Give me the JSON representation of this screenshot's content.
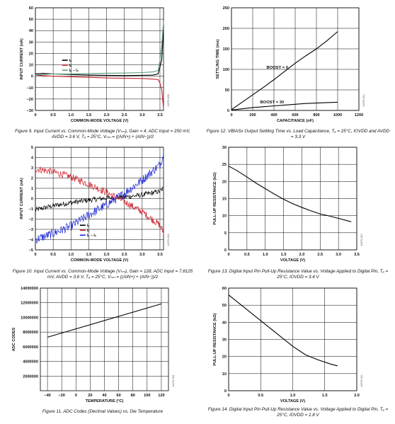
{
  "captions": {
    "fig9": "Figure 9. Input Current vs. Common-Mode Voltage (Vₕₘ), Gain = 4, ADC Input = 250 mV, AVDD = 3.6 V, Tₐ = 25°C, Vₕₘ = ((AIN+) + (AIN−))/2",
    "fig10": "Figure 10. Input Current vs. Common-Mode Voltage (Vₕₘ), Gain = 128, ADC Input = 7.8125 mV, AVDD = 3.6 V, Tₐ = 25°C, Vₕₘ = ((AIN+) + (AIN−))/2",
    "fig11": "Figure 11. ADC Codes (Decimal Values) vs. Die Temperature",
    "fig12": "Figure 12. VBIASx Output Settling Time vs. Load Capacitance, Tₐ = 25°C, IOVDD and AVDD = 3.3 V",
    "fig13": "Figure 13. Digital Input Pin Pull-Up Resistance Value vs. Voltage Applied to Digital Pin, Tₐ = 25°C, IOVDD = 3.4 V",
    "fig14": "Figure 14. Digital Input Pin Pull-Up Resistance Value vs. Voltage Applied to Digital Pin, Tₐ = 25°C, IOVDD = 1.8 V"
  },
  "chart_data": [
    {
      "id": "fig9",
      "type": "line",
      "xlabel": "COMMON-MODE VOLTAGE (V)",
      "ylabel": "INPUT CURRENT (nA)",
      "xlim": [
        0,
        3.6
      ],
      "ylim": [
        -30,
        60
      ],
      "xticks": [
        "0",
        "0.5",
        "1.0",
        "1.5",
        "2.0",
        "2.5",
        "3.0",
        "3.5"
      ],
      "yticks": [
        "60",
        "50",
        "40",
        "30",
        "20",
        "10",
        "0",
        "−10",
        "−20",
        "−30"
      ],
      "legend": [
        "Iₚ",
        "Iₙ",
        "Iₚ − Iₙ"
      ],
      "colors": [
        "#000000",
        "#cc1f2a",
        "#5a9e7d"
      ],
      "side_code": "14976-009",
      "series": [
        {
          "name": "Iₚ",
          "x": [
            0,
            0.2,
            0.5,
            1.0,
            1.5,
            2.0,
            2.5,
            3.0,
            3.3,
            3.45,
            3.5,
            3.55,
            3.6
          ],
          "y": [
            2,
            2.5,
            2,
            1.5,
            1,
            0.8,
            0.5,
            0.8,
            1,
            2,
            8,
            15,
            40
          ]
        },
        {
          "name": "Iₙ",
          "x": [
            0,
            0.2,
            0.5,
            1.0,
            1.5,
            2.0,
            2.5,
            3.0,
            3.3,
            3.45,
            3.5,
            3.55,
            3.6
          ],
          "y": [
            1,
            0.5,
            0,
            -0.5,
            -1,
            -1.5,
            -1.8,
            -2,
            -2.5,
            -3,
            -6,
            -12,
            -28
          ]
        },
        {
          "name": "Iₚ − Iₙ",
          "x": [
            0,
            0.2,
            0.5,
            1.0,
            1.5,
            2.0,
            2.5,
            3.0,
            3.3,
            3.45,
            3.5,
            3.55,
            3.6
          ],
          "y": [
            1,
            1.5,
            2,
            2,
            2.3,
            2.6,
            2.8,
            3.2,
            3.8,
            5,
            14,
            27,
            48
          ]
        }
      ]
    },
    {
      "id": "fig12",
      "type": "line",
      "xlabel": "CAPACITANCE (nF)",
      "ylabel": "SETTLING TIME (ms)",
      "xlim": [
        0,
        1200
      ],
      "ylim": [
        0,
        250
      ],
      "xticks": [
        "0",
        "200",
        "400",
        "600",
        "800",
        "1000",
        "1200"
      ],
      "yticks": [
        "250",
        "200",
        "150",
        "100",
        "50",
        "0"
      ],
      "annotations": [
        "BOOST = 0",
        "BOOST = 30"
      ],
      "side_code": "14976-012",
      "series": [
        {
          "name": "BOOST = 0",
          "x": [
            0,
            100,
            200,
            300,
            400,
            500,
            600,
            700,
            800,
            900,
            1000
          ],
          "y": [
            2,
            20,
            38,
            56,
            75,
            95,
            115,
            133,
            150,
            170,
            192
          ]
        },
        {
          "name": "BOOST = 30",
          "x": [
            0,
            100,
            200,
            300,
            400,
            500,
            600,
            700,
            800,
            900,
            1000
          ],
          "y": [
            1,
            4,
            7,
            9,
            11,
            13,
            15,
            17,
            18,
            19,
            20
          ]
        }
      ]
    },
    {
      "id": "fig10",
      "type": "line",
      "xlabel": "COMMON-MODE VOLTAGE (V)",
      "ylabel": "INPUT CURRENT (nA)",
      "xlim": [
        0,
        3.6
      ],
      "ylim": [
        -5,
        5
      ],
      "xticks": [
        "0",
        "0.5",
        "1.0",
        "1.5",
        "2.0",
        "2.5",
        "3.0",
        "3.5"
      ],
      "yticks": [
        "5",
        "4",
        "3",
        "2",
        "1",
        "0",
        "−1",
        "−2",
        "−3",
        "−4",
        "−5"
      ],
      "legend": [
        "Iₚ",
        "Iₙ",
        "Iₚ − Iₙ"
      ],
      "colors": [
        "#000000",
        "#cc1f2a",
        "#1f2ad6"
      ],
      "side_code": "14976-010",
      "series": [
        {
          "name": "Iₚ",
          "x": [
            0,
            0.5,
            1.0,
            1.5,
            2.0,
            2.5,
            3.0,
            3.5,
            3.6
          ],
          "y": [
            -1.1,
            -0.7,
            -0.4,
            -0.15,
            0.05,
            0.15,
            0.35,
            0.7,
            1.0
          ],
          "noise": 0.25
        },
        {
          "name": "Iₙ",
          "x": [
            0,
            0.5,
            1.0,
            1.5,
            2.0,
            2.5,
            3.0,
            3.5,
            3.6
          ],
          "y": [
            2.9,
            2.6,
            2.1,
            1.4,
            0.6,
            -0.3,
            -1.3,
            -2.6,
            -3.3
          ],
          "noise": 0.35
        },
        {
          "name": "Iₚ − Iₙ",
          "x": [
            0,
            0.5,
            1.0,
            1.5,
            2.0,
            2.5,
            3.0,
            3.5,
            3.6
          ],
          "y": [
            -4.0,
            -3.4,
            -2.7,
            -1.6,
            -0.6,
            0.5,
            1.8,
            3.3,
            4.3
          ],
          "noise": 0.45
        }
      ]
    },
    {
      "id": "fig13",
      "type": "line",
      "xlabel": "VOLTAGE (V)",
      "ylabel": "PULL-UP RESISTANCE (kΩ)",
      "xlim": [
        0,
        3.5
      ],
      "ylim": [
        0,
        30
      ],
      "xticks": [
        "0",
        "0.5",
        "1.0",
        "1.5",
        "2.0",
        "2.5",
        "3.0",
        "3.5"
      ],
      "yticks": [
        "30",
        "25",
        "20",
        "15",
        "10",
        "5",
        "0"
      ],
      "side_code": "14976-013",
      "series": [
        {
          "name": "",
          "x": [
            0,
            0.25,
            0.5,
            0.75,
            1.0,
            1.25,
            1.5,
            1.75,
            2.0,
            2.25,
            2.5,
            2.75,
            3.0,
            3.25,
            3.35
          ],
          "y": [
            24.5,
            23,
            21.3,
            19.5,
            17.9,
            16.3,
            14.8,
            13.5,
            12.4,
            11.4,
            10.5,
            9.9,
            9.2,
            8.5,
            8.2
          ]
        }
      ]
    },
    {
      "id": "fig11",
      "type": "line",
      "xlabel": "TEMPERATURE (°C)",
      "ylabel": "ADC CODES",
      "xlim": [
        -50,
        130
      ],
      "ylim": [
        0,
        14000000
      ],
      "xticks": [
        "−40",
        "−20",
        "0",
        "20",
        "40",
        "60",
        "80",
        "100",
        "120"
      ],
      "yticks": [
        "14000000",
        "12000000",
        "10000000",
        "8000000",
        "6000000",
        "4000000",
        "2000000"
      ],
      "side_code": "14976-011",
      "series": [
        {
          "name": "",
          "x": [
            -40,
            120
          ],
          "y": [
            7300000,
            11850000
          ]
        }
      ]
    },
    {
      "id": "fig14",
      "type": "line",
      "xlabel": "VOLTAGE (V)",
      "ylabel": "PULL-UP RESISTANCE (kΩ)",
      "xlim": [
        0,
        2.0
      ],
      "ylim": [
        0,
        60
      ],
      "xticks": [
        "0",
        "0.5",
        "1.0",
        "1.5",
        "2.0"
      ],
      "yticks": [
        "60",
        "50",
        "40",
        "30",
        "20",
        "10",
        "0"
      ],
      "side_code": "14976-014",
      "series": [
        {
          "name": "",
          "x": [
            0,
            0.2,
            0.4,
            0.6,
            0.8,
            1.0,
            1.2,
            1.4,
            1.6,
            1.7
          ],
          "y": [
            56,
            50,
            44,
            38,
            32,
            26,
            21,
            18,
            15.5,
            14.5
          ]
        }
      ]
    }
  ]
}
